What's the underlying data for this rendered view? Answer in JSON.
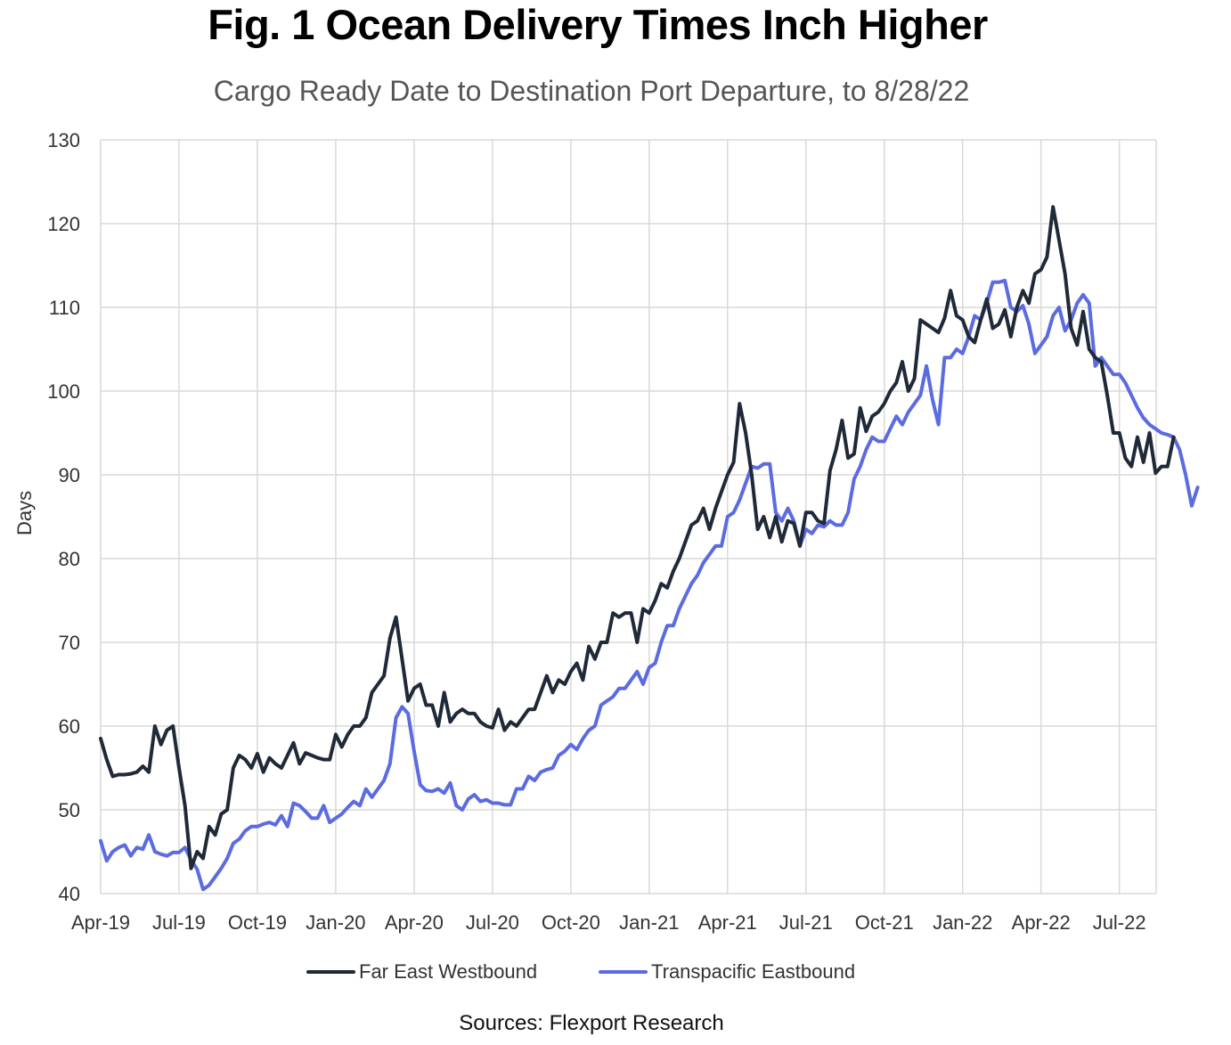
{
  "title": "Fig. 1 Ocean Delivery Times Inch Higher",
  "subtitle": "Cargo Ready Date to Destination Port Departure, to 8/28/22",
  "source": "Sources: Flexport Research",
  "colors": {
    "far_east_westbound": "#1f2937",
    "transpacific_eastbound": "#5b6be0",
    "grid": "#d9d9d9"
  },
  "chart_data": {
    "type": "line",
    "ylabel": "Days",
    "xlabel": "",
    "ylim": [
      40,
      130
    ],
    "yticks": [
      40,
      50,
      60,
      70,
      80,
      90,
      100,
      110,
      120,
      130
    ],
    "xticks": [
      "Apr-19",
      "Jul-19",
      "Oct-19",
      "Jan-20",
      "Apr-20",
      "Jul-20",
      "Oct-20",
      "Jan-21",
      "Apr-21",
      "Jul-21",
      "Oct-21",
      "Jan-22",
      "Apr-22",
      "Jul-22"
    ],
    "x_unit": "weeks from Apr-19 (13 weeks per tick)",
    "grid": true,
    "legend_position": "bottom",
    "series": [
      {
        "name": "Far East Westbound",
        "values": [
          58.5,
          56,
          54,
          54.2,
          54.2,
          54.3,
          54.5,
          55.2,
          54.5,
          60,
          57.8,
          59.5,
          60,
          55,
          50.5,
          43,
          45,
          44.2,
          48,
          47,
          49.5,
          50,
          55,
          56.5,
          56,
          55,
          56.7,
          54.5,
          56.2,
          55.5,
          55,
          56.5,
          58,
          55.5,
          56.8,
          56.5,
          56.2,
          56,
          56,
          59,
          57.5,
          59,
          60,
          60,
          61,
          64,
          65,
          66,
          70.5,
          73,
          68,
          63,
          64.5,
          65,
          62.5,
          62.5,
          60,
          64,
          60.5,
          61.5,
          62,
          61.5,
          61.5,
          60.5,
          60,
          59.8,
          62,
          59.5,
          60.5,
          60,
          61,
          62,
          62,
          64,
          66,
          64,
          65.5,
          65,
          66.5,
          67.5,
          65.5,
          69.5,
          68,
          70,
          70,
          73.5,
          73,
          73.5,
          73.5,
          70,
          74,
          73.5,
          75,
          77,
          76.5,
          78.5,
          80,
          82,
          84,
          84.5,
          86,
          83.5,
          86,
          88,
          90,
          91.5,
          98.5,
          95,
          90,
          83.5,
          85,
          82.5,
          85,
          82,
          84.5,
          84.2,
          81.5,
          85.5,
          85.5,
          84.5,
          84.2,
          90.5,
          93,
          96.5,
          92,
          92.5,
          98,
          95.2,
          97,
          97.5,
          98.5,
          100,
          101,
          103.5,
          100,
          101.5,
          108.5,
          108,
          107.5,
          107,
          108.7,
          112,
          109,
          108.5,
          106.5,
          105.8,
          108.5,
          111,
          107.5,
          108,
          109.7,
          106.5,
          110,
          112,
          110.5,
          114,
          114.5,
          116,
          122,
          118,
          114,
          107.5,
          105.5,
          109.5,
          105,
          104,
          103.5,
          99.5,
          95,
          95,
          92,
          91,
          94.5,
          91.5,
          95,
          90.2,
          91,
          91,
          94.5
        ]
      },
      {
        "name": "Transpacific Eastbound",
        "values": [
          46.3,
          43.9,
          45,
          45.5,
          45.8,
          44.5,
          45.5,
          45.3,
          47,
          45,
          44.7,
          44.5,
          44.9,
          44.9,
          45.5,
          44,
          42.9,
          40.5,
          41,
          42,
          43,
          44.2,
          46,
          46.5,
          47.5,
          48,
          48,
          48.3,
          48.5,
          48.2,
          49.3,
          48,
          50.8,
          50.5,
          49.8,
          49,
          49,
          50.5,
          48.5,
          49,
          49.5,
          50.3,
          51,
          50.5,
          52.5,
          51.5,
          52.5,
          53.5,
          55.5,
          61,
          62.3,
          61.5,
          57,
          53,
          52.3,
          52.2,
          52.5,
          52,
          53.2,
          50.5,
          50,
          51.3,
          51.8,
          51,
          51.2,
          50.8,
          50.8,
          50.6,
          50.6,
          52.5,
          52.5,
          54,
          53.5,
          54.5,
          54.8,
          55,
          56.5,
          57,
          57.8,
          57.2,
          58.5,
          59.5,
          60,
          62.5,
          63,
          63.5,
          64.5,
          64.5,
          65.5,
          66.5,
          65,
          67,
          67.5,
          70,
          72,
          72,
          74,
          75.5,
          77,
          78,
          79.5,
          80.5,
          81.5,
          81.5,
          85,
          85.5,
          87,
          89,
          91,
          90.8,
          91.3,
          91.3,
          85.5,
          84.5,
          86,
          84.5,
          81.5,
          83.5,
          83,
          84,
          83.8,
          84.5,
          84,
          84,
          85.5,
          89.5,
          91,
          93,
          94.5,
          94,
          94,
          95.5,
          97,
          96,
          97.5,
          98.5,
          99.5,
          103,
          99,
          96,
          104,
          104,
          105,
          104.5,
          106.5,
          109,
          108.5,
          110.5,
          113,
          113,
          113.2,
          110,
          109.5,
          110.2,
          108,
          104.5,
          105.5,
          106.5,
          109,
          110,
          107.2,
          108.5,
          110.5,
          111.5,
          110.5,
          103,
          104,
          103,
          102,
          102,
          101,
          99.5,
          98,
          96.8,
          96,
          95.5,
          95,
          94.8,
          94.5,
          93,
          90,
          86.3,
          88.5
        ]
      }
    ]
  }
}
